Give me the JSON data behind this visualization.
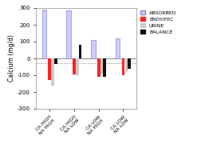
{
  "categories": [
    "CA HIGH\nNA HIGH",
    "CA HIGH\nNA LOW",
    "CA LOW\nNA HIGH",
    "CA LOW\nNA LOW"
  ],
  "absorbed": [
    290,
    285,
    110,
    120
  ],
  "endofec": [
    -130,
    -95,
    -110,
    -100
  ],
  "urine": [
    -160,
    -100,
    -90,
    -80
  ],
  "balance": [
    -35,
    80,
    -110,
    -60
  ],
  "colors": {
    "absorbed": "#aaaaff",
    "endofec": "#ff0000",
    "urine": "#cccccc",
    "balance": "#111111"
  },
  "ylabel": "Calcium (mg/d)",
  "ylim": [
    -300,
    300
  ],
  "yticks": [
    -300,
    -200,
    -100,
    0,
    100,
    200,
    300
  ],
  "hline_y": -30,
  "legend_labels": [
    "ABSORBED",
    "ENDOFEC",
    "URINE",
    "BALANCE"
  ],
  "background_color": "#ffffff"
}
